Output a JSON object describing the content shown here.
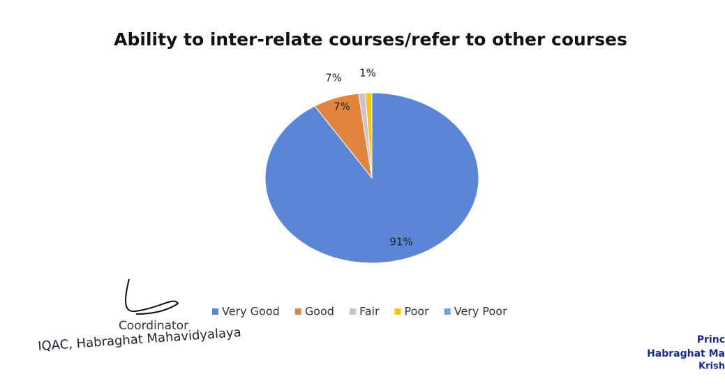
{
  "chart_data": {
    "type": "pie",
    "title": "Ability to inter-relate courses/refer to other courses",
    "categories": [
      "Very Good",
      "Good",
      "Fair",
      "Poor",
      "Very Poor"
    ],
    "values": [
      91,
      7,
      1,
      1,
      0
    ],
    "value_labels": [
      "91%",
      "7%",
      null,
      "1%",
      null
    ],
    "colors": [
      "#5b86d6",
      "#e0843e",
      "#c9c3cf",
      "#f5c518",
      "#6aa6e0"
    ],
    "annotations": [
      "7%"
    ],
    "legend": "bottom"
  },
  "document": {
    "signature_left": [
      "Coordinator",
      "IQAC, Habraghat Mahavidyalaya"
    ],
    "signature_right": [
      "Princ",
      "Habraghat Ma",
      "Krish"
    ]
  }
}
